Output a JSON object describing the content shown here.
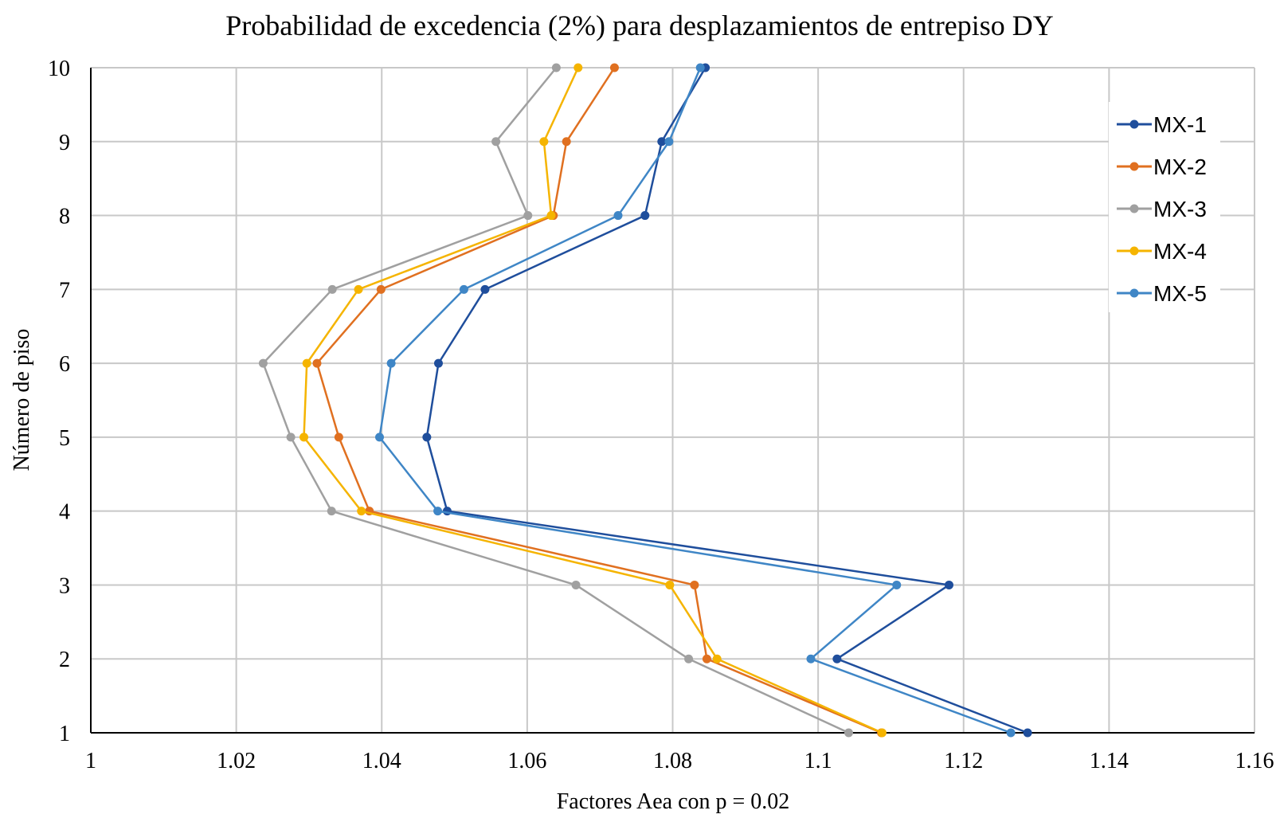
{
  "chart_data": {
    "type": "line",
    "orientation": "horizontal-profile",
    "title": "Probabilidad de excedencia (2%) para desplazamientos de entrepiso DY",
    "xlabel": "Factores Aea con p = 0.02",
    "ylabel": "Número de piso",
    "xlim": [
      1,
      1.16
    ],
    "ylim": [
      1,
      10
    ],
    "x_ticks": [
      "1",
      "1.02",
      "1.04",
      "1.06",
      "1.08",
      "1.1",
      "1.12",
      "1.14",
      "1.16"
    ],
    "y_ticks": [
      "1",
      "2",
      "3",
      "4",
      "5",
      "6",
      "7",
      "8",
      "9",
      "10"
    ],
    "grid": true,
    "legend_position": "right",
    "floors": [
      1,
      2,
      3,
      4,
      5,
      6,
      7,
      8,
      9,
      10
    ],
    "series": [
      {
        "name": "MX-1",
        "color": "#1F4E9C",
        "values": [
          1.1288,
          1.1026,
          1.118,
          1.049,
          1.0462,
          1.0478,
          1.0542,
          1.0762,
          1.0785,
          1.0845
        ]
      },
      {
        "name": "MX-2",
        "color": "#E07020",
        "values": [
          1.1087,
          1.0847,
          1.083,
          1.0383,
          1.0341,
          1.0311,
          1.0399,
          1.0636,
          1.0654,
          1.072
        ]
      },
      {
        "name": "MX-3",
        "color": "#A0A0A0",
        "values": [
          1.1042,
          1.0822,
          1.0667,
          1.0331,
          1.0275,
          1.0237,
          1.0332,
          1.0601,
          1.0557,
          1.064
        ]
      },
      {
        "name": "MX-4",
        "color": "#F5B400",
        "values": [
          1.1088,
          1.0861,
          1.0796,
          1.0372,
          1.0293,
          1.0297,
          1.0368,
          1.0633,
          1.0623,
          1.067
        ]
      },
      {
        "name": "MX-5",
        "color": "#3F86C6",
        "values": [
          1.1265,
          1.099,
          1.1108,
          1.0477,
          1.0397,
          1.0413,
          1.0513,
          1.0725,
          1.0795,
          1.0838
        ]
      }
    ]
  }
}
